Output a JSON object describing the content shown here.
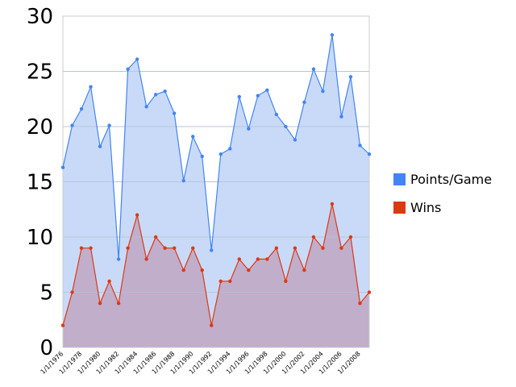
{
  "chart_data": {
    "type": "area",
    "x": [
      "1976",
      "1977",
      "1978",
      "1979",
      "1980",
      "1981",
      "1982",
      "1983",
      "1984",
      "1985",
      "1986",
      "1987",
      "1988",
      "1989",
      "1990",
      "1991",
      "1992",
      "1993",
      "1994",
      "1995",
      "1996",
      "1997",
      "1998",
      "1999",
      "2000",
      "2001",
      "2002",
      "2003",
      "2004",
      "2005",
      "2006",
      "2007",
      "2008",
      "2009"
    ],
    "x_tick_labels": [
      "1/1/1976",
      "1/1/1978",
      "1/1/1980",
      "1/1/1982",
      "1/1/1984",
      "1/1/1986",
      "1/1/1988",
      "1/1/1990",
      "1/1/1992",
      "1/1/1994",
      "1/1/1996",
      "1/1/1998",
      "1/1/2000",
      "1/1/2002",
      "1/1/2004",
      "1/1/2006",
      "1/1/2008"
    ],
    "ylim": [
      0,
      30
    ],
    "y_ticks": [
      "0",
      "5",
      "10",
      "15",
      "20",
      "25",
      "30"
    ],
    "grid": true,
    "legend_position": "right",
    "series": [
      {
        "name": "Points/Game",
        "color": "#4285f4",
        "fill": "#c9daf8",
        "values": [
          16.3,
          20.1,
          21.6,
          23.6,
          18.2,
          20.1,
          8.0,
          25.2,
          26.1,
          21.8,
          22.9,
          23.2,
          21.2,
          15.1,
          19.1,
          17.3,
          8.8,
          17.5,
          18.0,
          22.7,
          19.8,
          22.8,
          23.3,
          21.1,
          20.0,
          18.8,
          22.2,
          25.2,
          23.2,
          28.3,
          20.9,
          24.5,
          18.3,
          17.5
        ]
      },
      {
        "name": "Wins",
        "color": "#dc3912",
        "fill": "#c0aecb",
        "values": [
          2,
          5,
          9,
          9,
          4,
          6,
          4,
          9,
          12,
          8,
          10,
          9,
          9,
          7,
          9,
          7,
          2,
          6,
          6,
          8,
          7,
          8,
          8,
          9,
          6,
          9,
          7,
          10,
          9,
          13,
          9,
          10,
          4,
          5
        ]
      }
    ]
  }
}
